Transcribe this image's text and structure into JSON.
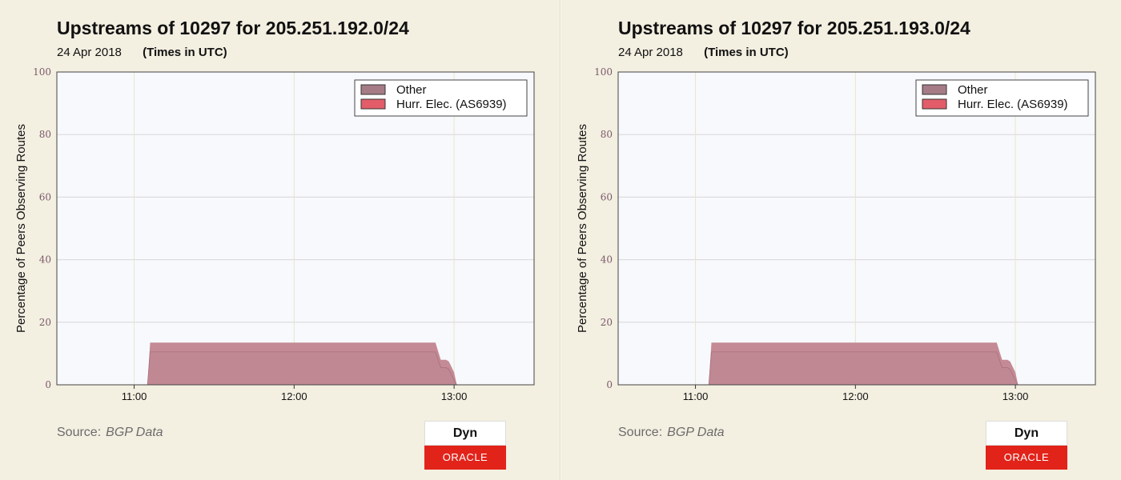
{
  "colors": {
    "background": "#f3efe1",
    "plot_background": "#f7f9fd",
    "grid": "#d8d8d8",
    "vertical_grid": "#e8e6c8",
    "other_fill": "#c08893",
    "hurricane_fill": "#e06070",
    "legend_other_swatch": "#a57c86",
    "legend_hurricane_swatch": "#e35c6a",
    "oracle_red": "#e2231a"
  },
  "panels": [
    {
      "title": "Upstreams of 10297 for 205.251.192.0/24",
      "date": "24 Apr 2018",
      "times_note": "(Times in UTC)",
      "source_label": "Source:",
      "source_value": "BGP Data",
      "logo_top": "Dyn",
      "logo_bottom": "ORACLE",
      "legend": {
        "other": "Other",
        "hurricane": "Hurr. Elec. (AS6939)"
      }
    },
    {
      "title": "Upstreams of 10297 for 205.251.193.0/24",
      "date": "24 Apr 2018",
      "times_note": "(Times in UTC)",
      "source_label": "Source:",
      "source_value": "BGP Data",
      "logo_top": "Dyn",
      "logo_bottom": "ORACLE",
      "legend": {
        "other": "Other",
        "hurricane": "Hurr. Elec. (AS6939)"
      }
    }
  ],
  "chart_data": [
    {
      "type": "area",
      "title": "Upstreams of 10297 for 205.251.192.0/24",
      "ylabel": "Percentage of Peers Observing Routes",
      "xlabel": "",
      "ylim": [
        0,
        100
      ],
      "xlim": [
        "10:31",
        "13:30"
      ],
      "yticks": [
        0,
        20,
        40,
        60,
        80,
        100
      ],
      "xticks": [
        "11:00",
        "12:00",
        "13:00"
      ],
      "grid": true,
      "legend_position": "top-right",
      "stacked": true,
      "x": [
        "11:05",
        "11:06",
        "12:53",
        "12:55",
        "12:57",
        "12:58",
        "13:00",
        "13:01"
      ],
      "series": [
        {
          "name": "Other",
          "values": [
            0,
            10.5,
            10.5,
            5.5,
            5.5,
            5.0,
            1.5,
            0
          ]
        },
        {
          "name": "Hurr. Elec. (AS6939)",
          "values": [
            0,
            3,
            3,
            2.5,
            2.5,
            2.5,
            2.5,
            0
          ]
        }
      ]
    },
    {
      "type": "area",
      "title": "Upstreams of 10297 for 205.251.193.0/24",
      "ylabel": "Percentage of Peers Observing Routes",
      "xlabel": "",
      "ylim": [
        0,
        100
      ],
      "xlim": [
        "10:31",
        "13:30"
      ],
      "yticks": [
        0,
        20,
        40,
        60,
        80,
        100
      ],
      "xticks": [
        "11:00",
        "12:00",
        "13:00"
      ],
      "grid": true,
      "legend_position": "top-right",
      "stacked": true,
      "x": [
        "11:05",
        "11:06",
        "12:53",
        "12:55",
        "12:57",
        "12:58",
        "13:00",
        "13:01"
      ],
      "series": [
        {
          "name": "Other",
          "values": [
            0,
            10.5,
            10.5,
            5.5,
            5.5,
            5.0,
            1.5,
            0
          ]
        },
        {
          "name": "Hurr. Elec. (AS6939)",
          "values": [
            0,
            3,
            3,
            2.5,
            2.5,
            2.5,
            2.5,
            0
          ]
        }
      ]
    }
  ]
}
